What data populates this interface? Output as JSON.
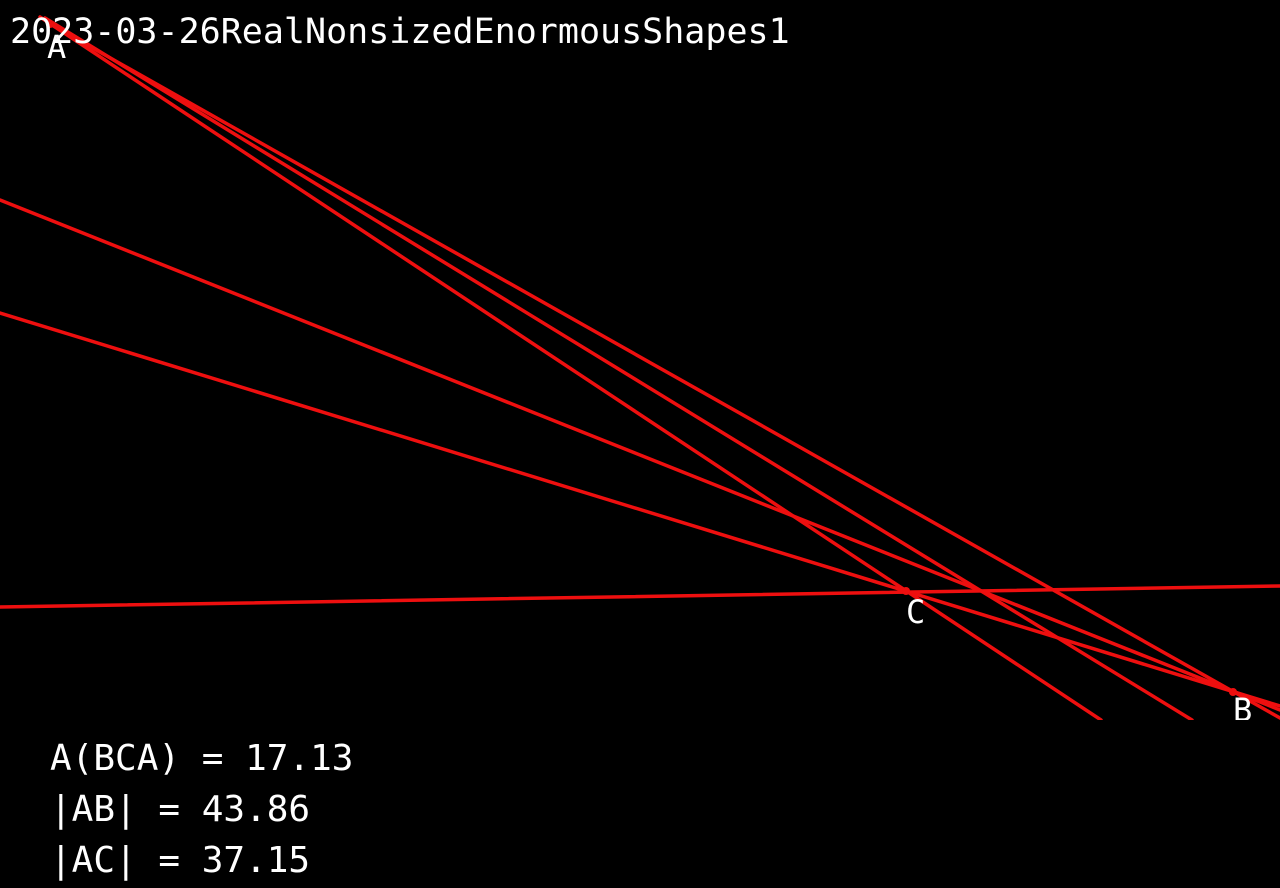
{
  "title": "2023-03-26RealNonsizedEnormousShapes1",
  "points": {
    "a": "A",
    "b": "B",
    "c": "C"
  },
  "measurements": [
    {
      "text": "A(BCA) = 17.13"
    },
    {
      "text": "|AB| = 43.86"
    },
    {
      "text": "|AC| = 37.15"
    }
  ],
  "colors": {
    "background": "#000000",
    "line": "#ee0f0f",
    "text": "#ffffff"
  }
}
